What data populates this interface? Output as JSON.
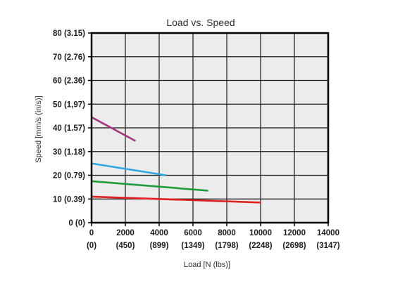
{
  "chart_data": {
    "type": "line",
    "title": "Load vs. Speed",
    "xlabel": "Load [N (lbs)]",
    "ylabel": "Speed [mm/s (in/s)]",
    "xlim": [
      0,
      14000
    ],
    "ylim": [
      0,
      80
    ],
    "grid": true,
    "x_ticks": [
      {
        "value": 0,
        "label": "0",
        "sublabel": "(0)"
      },
      {
        "value": 2000,
        "label": "2000",
        "sublabel": "(450)"
      },
      {
        "value": 4000,
        "label": "4000",
        "sublabel": "(899)"
      },
      {
        "value": 6000,
        "label": "6000",
        "sublabel": "(1349)"
      },
      {
        "value": 8000,
        "label": "8000",
        "sublabel": "(1798)"
      },
      {
        "value": 10000,
        "label": "10000",
        "sublabel": "(2248)"
      },
      {
        "value": 12000,
        "label": "12000",
        "sublabel": "(2698)"
      },
      {
        "value": 14000,
        "label": "14000",
        "sublabel": "(3147)"
      }
    ],
    "y_ticks": [
      {
        "value": 0,
        "label": "0 (0)"
      },
      {
        "value": 10,
        "label": "10 (0.39)"
      },
      {
        "value": 20,
        "label": "20 (0.79)"
      },
      {
        "value": 30,
        "label": "30 (1.18)"
      },
      {
        "value": 40,
        "label": "40 (1.57)"
      },
      {
        "value": 50,
        "label": "50 (1,97)"
      },
      {
        "value": 60,
        "label": "60 (2.36)"
      },
      {
        "value": 70,
        "label": "70 (2.76)"
      },
      {
        "value": 80,
        "label": "80 (3.15)"
      }
    ],
    "series": [
      {
        "color": "#a3367f",
        "points": [
          [
            0,
            44.5
          ],
          [
            2600,
            34.5
          ]
        ]
      },
      {
        "color": "#2ea6e0",
        "points": [
          [
            0,
            25
          ],
          [
            4400,
            20
          ]
        ]
      },
      {
        "color": "#1f9a3c",
        "points": [
          [
            0,
            17.5
          ],
          [
            6900,
            13.5
          ]
        ]
      },
      {
        "color": "#e0201d",
        "points": [
          [
            0,
            11
          ],
          [
            10000,
            8.5
          ]
        ]
      }
    ],
    "colors": {
      "background": "#ececec",
      "grid": "#1a1a1a",
      "frame": "#000000"
    }
  }
}
